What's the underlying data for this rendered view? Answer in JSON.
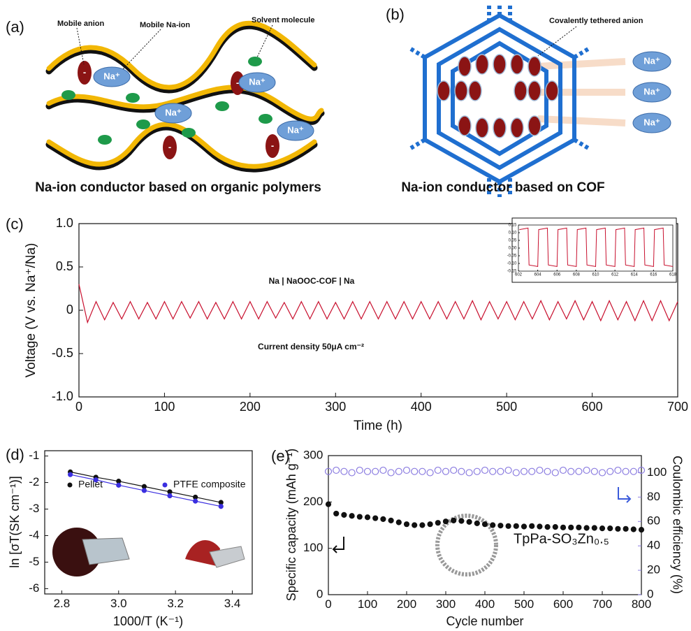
{
  "diagrams": [
    {
      "label": "(a)",
      "caption": "Na-ion conductor based on organic polymers",
      "annotations": [
        "Mobile anion",
        "Mobile Na-ion",
        "Solvent molecule"
      ],
      "ion_labels": [
        "Na⁺",
        "Na⁺",
        "Na⁺",
        "Na⁺"
      ],
      "anion_signs": [
        "-",
        "-",
        "-",
        "-"
      ]
    },
    {
      "label": "(b)",
      "caption": "Na-ion conductor based on COF",
      "annotations": [
        "Covalently tethered anion"
      ],
      "ion_labels": [
        "Na⁺",
        "Na⁺",
        "Na⁺"
      ]
    }
  ],
  "chart_data": [
    {
      "type": "line",
      "panel_label": "(c)",
      "xlabel": "Time (h)",
      "ylabel": "Voltage (V vs. Na⁺/Na)",
      "annotations": [
        "Na | NaOOC-COF | Na",
        "Current density 50μA cm⁻²"
      ],
      "xlim": [
        0,
        700
      ],
      "xticks": [
        0,
        100,
        200,
        300,
        400,
        500,
        600,
        700
      ],
      "ylim": [
        -1,
        1
      ],
      "yticks": [
        {
          "value": -1,
          "label": "-1.0"
        },
        -0.5,
        0,
        0.5,
        {
          "value": 1,
          "label": "1.0"
        }
      ],
      "x": [
        0,
        10,
        20,
        30,
        40,
        50,
        60,
        70,
        80,
        90,
        100,
        110,
        120,
        130,
        140,
        150,
        160,
        170,
        180,
        190,
        200,
        210,
        220,
        230,
        240,
        250,
        260,
        270,
        280,
        290,
        300,
        310,
        320,
        330,
        340,
        350,
        360,
        370,
        380,
        390,
        400,
        410,
        420,
        430,
        440,
        450,
        460,
        470,
        480,
        490,
        500,
        510,
        520,
        530,
        540,
        550,
        560,
        570,
        580,
        590,
        600,
        610,
        620,
        630,
        640,
        650,
        660,
        670,
        680,
        690,
        700
      ],
      "series": [
        {
          "color": "#c8102e",
          "line": true,
          "values": [
            0.3,
            -0.14,
            0.1,
            -0.11,
            0.09,
            -0.1,
            0.1,
            -0.1,
            0.09,
            -0.1,
            0.1,
            -0.1,
            0.1,
            -0.09,
            0.1,
            -0.1,
            0.09,
            -0.1,
            0.1,
            -0.1,
            0.1,
            -0.1,
            0.1,
            -0.09,
            0.09,
            -0.1,
            0.1,
            -0.1,
            0.1,
            -0.1,
            0.09,
            -0.1,
            0.1,
            -0.1,
            0.1,
            -0.1,
            0.1,
            -0.1,
            0.1,
            -0.1,
            0.1,
            -0.1,
            0.1,
            -0.1,
            0.1,
            -0.1,
            0.11,
            -0.11,
            0.1,
            -0.1,
            0.1,
            -0.11,
            0.1,
            -0.1,
            0.11,
            -0.11,
            0.1,
            -0.1,
            0.11,
            -0.11,
            0.1,
            -0.12,
            0.11,
            -0.11,
            0.1,
            -0.12,
            0.11,
            -0.12,
            0.11,
            -0.12,
            0.1
          ]
        }
      ]
    },
    {
      "type": "line",
      "xlim": [
        602,
        618
      ],
      "xticks": [
        602,
        604,
        606,
        608,
        610,
        612,
        614,
        616,
        618
      ],
      "ylim": [
        -0.15,
        0.15
      ],
      "yticks": [
        -0.15,
        {
          "value": -0.1,
          "label": "-0.10"
        },
        -0.05,
        {
          "value": 0,
          "label": "0.00"
        },
        0.05,
        {
          "value": 0.1,
          "label": "0.10"
        },
        0.15
      ],
      "x": [
        602.1,
        603,
        603.1,
        604,
        604.1,
        605,
        605.1,
        606,
        606.1,
        607,
        607.1,
        608,
        608.1,
        609,
        609.1,
        610,
        610.1,
        611,
        611.1,
        612,
        612.1,
        613,
        613.1,
        614,
        614.1,
        615,
        615.1,
        616,
        616.1,
        617,
        617.1,
        618
      ],
      "series": [
        {
          "color": "#c8102e",
          "line": true,
          "values": [
            0.12,
            0.13,
            -0.11,
            -0.12,
            0.12,
            0.13,
            -0.11,
            -0.12,
            0.12,
            0.13,
            -0.11,
            -0.12,
            0.12,
            0.13,
            -0.11,
            -0.12,
            0.12,
            0.13,
            -0.11,
            -0.12,
            0.12,
            0.13,
            -0.11,
            -0.12,
            0.12,
            0.13,
            -0.11,
            -0.12,
            0.12,
            0.13,
            -0.11,
            -0.12
          ]
        }
      ]
    },
    {
      "type": "line",
      "panel_label": "(d)",
      "xlabel": "1000/T (K⁻¹)",
      "ylabel": "ln [σT(SK cm⁻¹)]",
      "xlim": [
        2.74,
        3.47
      ],
      "xticks": [
        2.8,
        {
          "value": 3,
          "label": "3.0"
        },
        3.2,
        3.4
      ],
      "ylim": [
        -6.2,
        -0.8
      ],
      "yticks": [
        -6,
        -5,
        -4,
        -3,
        -2,
        -1
      ],
      "x": [
        2.83,
        2.92,
        3.0,
        3.09,
        3.18,
        3.27,
        3.36
      ],
      "series": [
        {
          "name": "Pellet",
          "color": "#111111",
          "line": true,
          "marker": "filled",
          "values": [
            -1.6,
            -1.8,
            -1.95,
            -2.15,
            -2.35,
            -2.55,
            -2.75
          ]
        },
        {
          "name": "PTFE composite",
          "color": "#3b2fe0",
          "line": true,
          "marker": "filled",
          "values": [
            -1.7,
            -1.9,
            -2.1,
            -2.3,
            -2.5,
            -2.7,
            -2.9
          ]
        }
      ]
    },
    {
      "type": "scatter",
      "panel_label": "(e)",
      "xlabel": "Cycle number",
      "ylabel": "Specific capacity (mAh g⁻¹)",
      "y2label": "Coulombic efficiency (%)",
      "annotations": [
        "TpPa-SO₃Zn₀.₅"
      ],
      "xlim": [
        0,
        800
      ],
      "xticks": [
        0,
        100,
        200,
        300,
        400,
        500,
        600,
        700,
        800
      ],
      "ylim": [
        0,
        300
      ],
      "yticks": [
        0,
        100,
        200,
        300
      ],
      "y2lim": [
        0,
        114
      ],
      "y2ticks": [
        0,
        20,
        40,
        60,
        80,
        100
      ],
      "x": [
        0,
        20,
        40,
        60,
        80,
        100,
        120,
        140,
        160,
        180,
        200,
        220,
        240,
        260,
        280,
        300,
        320,
        340,
        360,
        380,
        400,
        420,
        440,
        460,
        480,
        500,
        520,
        540,
        560,
        580,
        600,
        620,
        640,
        660,
        680,
        700,
        720,
        740,
        760,
        780,
        800
      ],
      "series": [
        {
          "color": "#111111",
          "marker": "filled",
          "values": [
            195,
            175,
            172,
            170,
            168,
            167,
            165,
            163,
            160,
            156,
            152,
            150,
            150,
            152,
            155,
            158,
            160,
            159,
            157,
            154,
            152,
            150,
            149,
            148,
            148,
            147,
            148,
            147,
            146,
            146,
            145,
            145,
            145,
            144,
            144,
            143,
            143,
            142,
            142,
            141,
            140
          ]
        },
        {
          "color": "#8a7be0",
          "marker": "open",
          "axis": "y2",
          "values": [
            101,
            102,
            101,
            100,
            102,
            101,
            101,
            102,
            100,
            101,
            102,
            101,
            101,
            100,
            102,
            101,
            102,
            101,
            100,
            101,
            102,
            101,
            101,
            102,
            100,
            101,
            101,
            102,
            101,
            100,
            102,
            101,
            101,
            102,
            101,
            100,
            101,
            102,
            101,
            101,
            102
          ]
        }
      ]
    }
  ]
}
